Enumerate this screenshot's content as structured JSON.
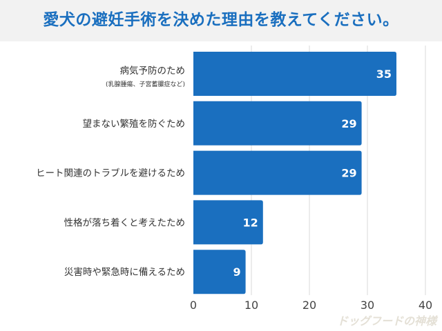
{
  "chart_data": {
    "type": "bar",
    "orientation": "horizontal",
    "title": "愛犬の避妊手術を決めた理由を教えてください。",
    "categories": [
      {
        "label": "病気予防のため",
        "sublabel": "(乳腺腫瘍、子宮蓄膿症など)"
      },
      {
        "label": "望まない繁殖を防ぐため"
      },
      {
        "label": "ヒート関連のトラブルを避けるため"
      },
      {
        "label": "性格が落ち着くと考えたため"
      },
      {
        "label": "災害時や緊急時に備えるため"
      }
    ],
    "values": [
      35,
      29,
      29,
      12,
      9
    ],
    "xlim": [
      0,
      40
    ],
    "xticks": [
      0,
      10,
      20,
      30,
      40
    ],
    "grid": true,
    "xlabel": "",
    "ylabel": "",
    "bar_color": "#1a6fbf",
    "title_color": "#1a6fbf"
  },
  "watermark": "ドッグフードの神様"
}
